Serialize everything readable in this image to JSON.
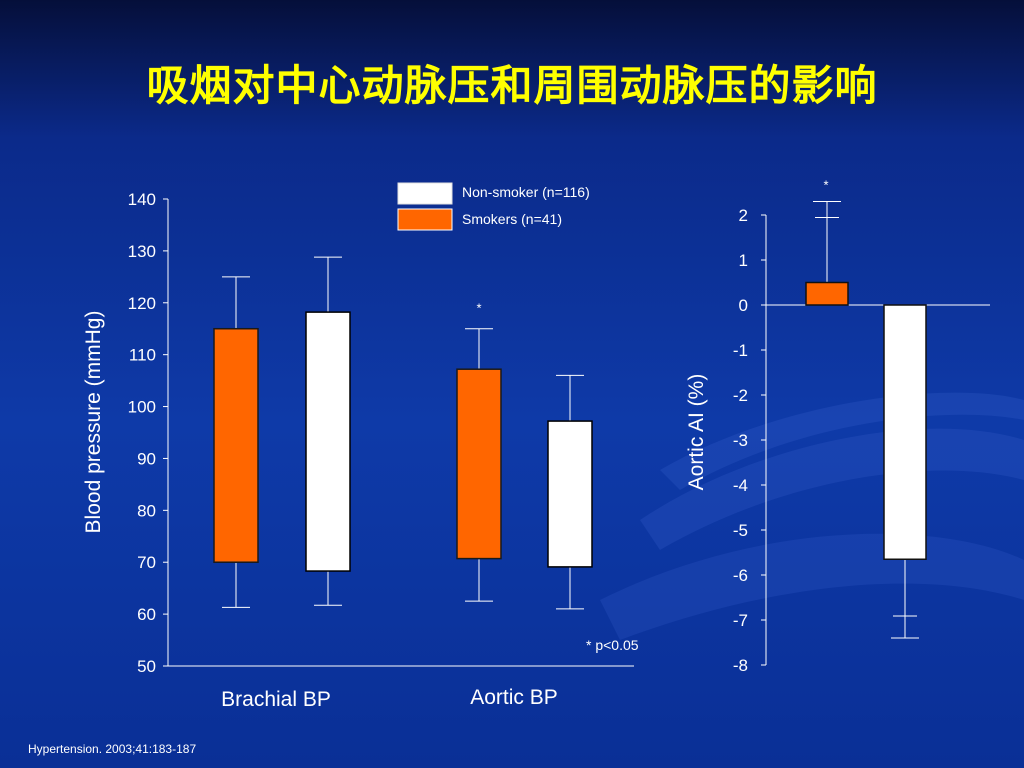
{
  "title": "吸烟对中心动脉压和周围动脉压的影响",
  "citation": "Hypertension. 2003;41:183-187",
  "colors": {
    "smoker": "#ff6600",
    "nonsmoker": "#ffffff",
    "title": "#ffff00",
    "axis": "#ffffff"
  },
  "chart_data": [
    {
      "type": "bar",
      "subtype": "floating-bar-with-whiskers",
      "ylabel": "Blood pressure (mmHg)",
      "ylim": [
        50,
        140
      ],
      "yticks": [
        50,
        60,
        70,
        80,
        90,
        100,
        110,
        120,
        130,
        140
      ],
      "categories": [
        "Brachial BP",
        "Aortic BP"
      ],
      "legend": {
        "placement": "top",
        "entries": [
          "Non-smoker (n=116)",
          "Smokers (n=41)"
        ]
      },
      "series": [
        {
          "name": "Smokers (n=41)",
          "color": "#ff6600",
          "data": [
            {
              "category": "Brachial BP",
              "low": 70,
              "high": 115,
              "whisker_low": 61.3,
              "whisker_high": 125
            },
            {
              "category": "Aortic BP",
              "low": 70.7,
              "high": 107.2,
              "whisker_low": 62.5,
              "whisker_high": 115,
              "marker": "*"
            }
          ]
        },
        {
          "name": "Non-smoker (n=116)",
          "color": "#ffffff",
          "data": [
            {
              "category": "Brachial BP",
              "low": 68.3,
              "high": 118.2,
              "whisker_low": 61.7,
              "whisker_high": 128.8
            },
            {
              "category": "Aortic BP",
              "low": 69.1,
              "high": 97.2,
              "whisker_low": 61,
              "whisker_high": 106
            }
          ]
        }
      ],
      "annotation": "* p<0.05"
    },
    {
      "type": "bar",
      "ylabel": "Aortic AI (%)",
      "ylim": [
        -8,
        2
      ],
      "yticks": [
        2,
        1,
        0,
        -1,
        -2,
        -3,
        -4,
        -5,
        -6,
        -7,
        -8
      ],
      "tick_labels": [
        "2",
        "1",
        "0",
        "-1",
        "-2",
        "-3",
        "-4",
        "-5",
        "-6",
        "-7",
        "-8"
      ],
      "series": [
        {
          "name": "Smokers (n=41)",
          "color": "#ff6600",
          "value": 0.5,
          "error": 1.8,
          "error_direction": "up",
          "marker": "*"
        },
        {
          "name": "Non-smoker (n=116)",
          "color": "#ffffff",
          "value": -5.65,
          "error": 1.75,
          "error_direction": "down"
        }
      ]
    }
  ]
}
